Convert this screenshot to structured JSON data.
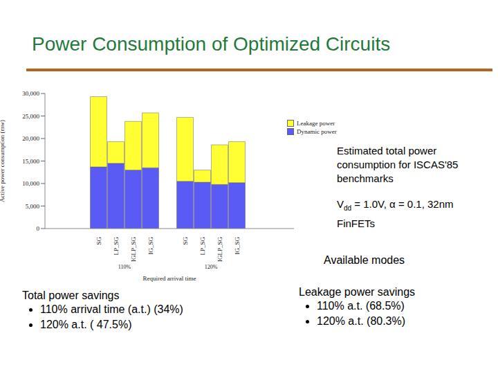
{
  "chart_data": {
    "type": "bar",
    "stacked": true,
    "title": "Power Consumption of Optimized Circuits",
    "categories": [
      "SG",
      "LP_SG",
      "IGLP_SG",
      "IG_SG",
      null,
      "SG",
      "LP_SG",
      "IGLP_SG",
      "IG_SG"
    ],
    "groups": [
      "110%",
      "120%"
    ],
    "x_label": "Required arrival time",
    "y_label": "Active power consumption (mw)",
    "series": [
      {
        "name": "Dynamic power",
        "color": "#5a5af5",
        "values": [
          13700,
          14500,
          13000,
          13500,
          null,
          10500,
          10300,
          9800,
          10200
        ]
      },
      {
        "name": "Leakage power",
        "color": "#ffff33",
        "values": [
          15600,
          4800,
          10800,
          12200,
          null,
          14200,
          2700,
          8800,
          9100
        ]
      }
    ],
    "ylim": [
      0,
      30000
    ],
    "yticks": [
      0,
      {
        "value": 5000,
        "label": "5,000"
      },
      {
        "value": 10000,
        "label": "10,000"
      },
      {
        "value": 15000,
        "label": "15,000"
      },
      {
        "value": 20000,
        "label": "20,000"
      },
      {
        "value": 25000,
        "label": "25,000"
      },
      {
        "value": 30000,
        "label": "30,000"
      }
    ],
    "grid": false,
    "legend": "right"
  },
  "annotations": {
    "caption": "Estimated total power consumption for ISCAS'85 benchmarks",
    "conditions": {
      "base": "V",
      "sub": "dd",
      "rest": " = 1.0V, α = 0.1, 32nm FinFETs"
    },
    "modes_label": "Available modes",
    "total_savings": {
      "heading": "Total power savings",
      "items": [
        "110% arrival time (a.t.) (34%)",
        "120% a.t. ( 47.5%)"
      ]
    },
    "leakage_savings": {
      "heading": "Leakage power savings",
      "items": [
        "110% a.t. (68.5%)",
        "120% a.t. (80.3%)"
      ]
    }
  }
}
